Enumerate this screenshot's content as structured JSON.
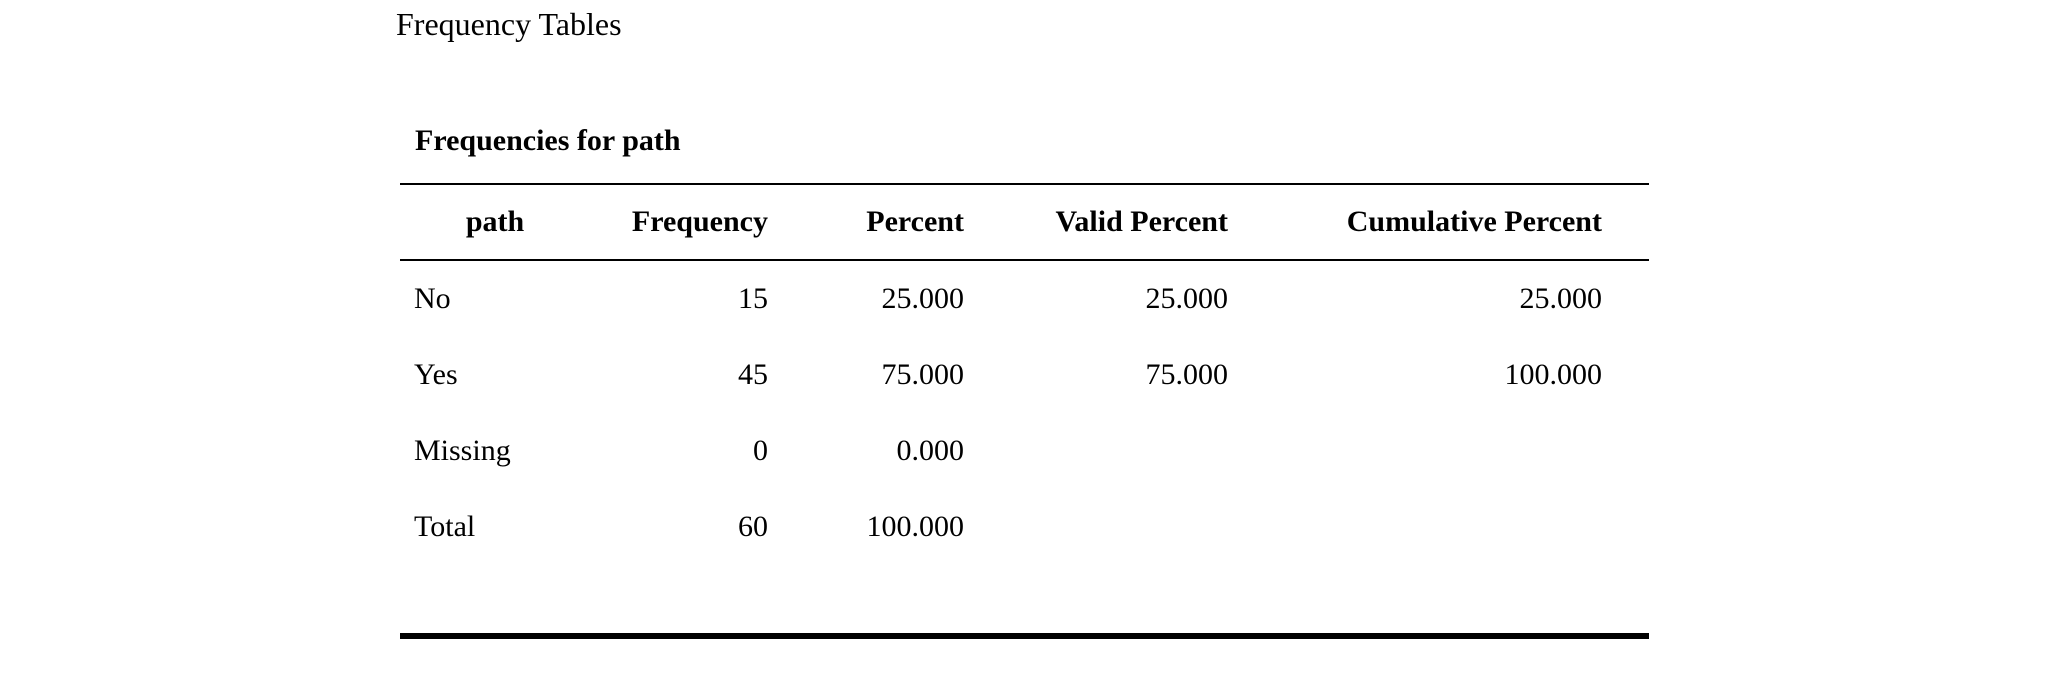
{
  "page": {
    "title": "Frequency Tables"
  },
  "table": {
    "caption": "Frequencies for path",
    "columns": [
      "path",
      "Frequency",
      "Percent",
      "Valid Percent",
      "Cumulative Percent"
    ],
    "rows": [
      [
        "No",
        "15",
        "25.000",
        "25.000",
        "25.000"
      ],
      [
        "Yes",
        "45",
        "75.000",
        "75.000",
        "100.000"
      ],
      [
        "Missing",
        "0",
        "0.000",
        "",
        ""
      ],
      [
        "Total",
        "60",
        "100.000",
        "",
        ""
      ]
    ]
  },
  "colors": {
    "text": "#000000",
    "rule": "#000000",
    "background": "#ffffff"
  }
}
